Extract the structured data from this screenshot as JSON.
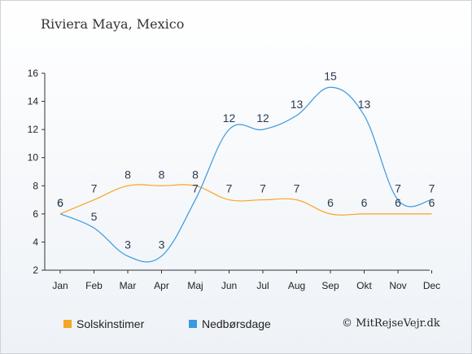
{
  "title": "Riviera Maya, Mexico",
  "credit": "© MitRejseVejr.dk",
  "chart_data": {
    "type": "line",
    "categories": [
      "Jan",
      "Feb",
      "Mar",
      "Apr",
      "Maj",
      "Jun",
      "Jul",
      "Aug",
      "Sep",
      "Okt",
      "Nov",
      "Dec"
    ],
    "ylim": [
      2,
      16
    ],
    "yticks": [
      2,
      4,
      6,
      8,
      10,
      12,
      14,
      16
    ],
    "grid": false,
    "legend_placement": "bottom-left",
    "series": [
      {
        "name": "Solskinstimer",
        "color": "#f5a623",
        "values": [
          6,
          7,
          8,
          8,
          8,
          7,
          7,
          7,
          6,
          6,
          6,
          6
        ]
      },
      {
        "name": "Nedbørsdage",
        "color": "#3a9ae0",
        "values": [
          6,
          5,
          3,
          3,
          7,
          12,
          12,
          13,
          15,
          13,
          7,
          7
        ]
      }
    ]
  }
}
